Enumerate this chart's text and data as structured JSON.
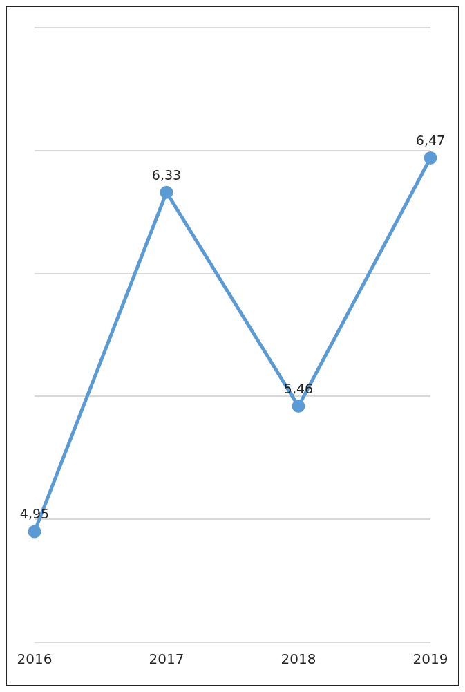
{
  "chart_data": {
    "type": "line",
    "categories": [
      "2016",
      "2017",
      "2018",
      "2019"
    ],
    "series": [
      {
        "color": "#5b9bd5",
        "values": [
          4.95,
          6.33,
          5.46,
          6.47
        ],
        "value_labels": [
          "4,95",
          "6,33",
          "5,46",
          "6,47"
        ]
      }
    ],
    "ylim": [
      4.5,
      7
    ],
    "yticks": [
      4.5,
      5,
      5.5,
      6,
      6.5,
      7
    ],
    "grid": "y",
    "tick_labels": "x",
    "legend": false,
    "marker": "circle",
    "line_style": "solid"
  }
}
